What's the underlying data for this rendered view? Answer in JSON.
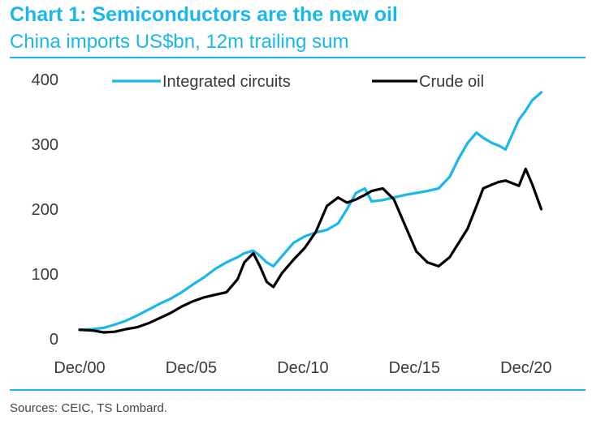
{
  "title": "Chart 1: Semiconductors are the new oil",
  "subtitle": "China imports US$bn, 12m trailing sum",
  "source": "Sources: CEIC, TS Lombard.",
  "chart_data": {
    "type": "line",
    "title": "Chart 1: Semiconductors are the new oil",
    "subtitle": "China imports US$bn, 12m trailing sum",
    "xlabel": "",
    "ylabel": "",
    "x_tick_labels": [
      "Dec/00",
      "Dec/05",
      "Dec/10",
      "Dec/15",
      "Dec/20"
    ],
    "x_tick_values": [
      2000.92,
      2005.92,
      2010.92,
      2015.92,
      2020.92
    ],
    "y_ticks": [
      0,
      100,
      200,
      300,
      400
    ],
    "ylim": [
      0,
      400
    ],
    "xlim": [
      2000.92,
      2023.0
    ],
    "grid": false,
    "legend_position": "top",
    "series": [
      {
        "name": "Integrated circuits",
        "color": "#1ab7ea",
        "x": [
          2000.92,
          2001.5,
          2002.0,
          2002.5,
          2003.0,
          2003.5,
          2004.0,
          2004.5,
          2005.0,
          2005.5,
          2006.0,
          2006.5,
          2007.0,
          2007.5,
          2008.0,
          2008.3,
          2008.7,
          2009.0,
          2009.3,
          2009.6,
          2010.0,
          2010.5,
          2011.0,
          2011.5,
          2012.0,
          2012.5,
          2012.9,
          2013.3,
          2013.7,
          2014.0,
          2014.5,
          2015.0,
          2015.5,
          2016.0,
          2016.5,
          2017.0,
          2017.5,
          2017.9,
          2018.3,
          2018.7,
          2019.0,
          2019.4,
          2019.7,
          2020.0,
          2020.3,
          2020.6,
          2020.9,
          2021.2,
          2021.6
        ],
        "values": [
          14,
          15,
          17,
          22,
          28,
          36,
          45,
          54,
          62,
          72,
          84,
          95,
          108,
          118,
          126,
          132,
          136,
          128,
          118,
          112,
          128,
          148,
          158,
          164,
          168,
          178,
          200,
          225,
          232,
          212,
          214,
          218,
          222,
          225,
          228,
          232,
          250,
          278,
          302,
          318,
          310,
          302,
          298,
          292,
          315,
          338,
          352,
          368,
          380
        ]
      },
      {
        "name": "Crude oil",
        "color": "#000000",
        "x": [
          2000.92,
          2001.5,
          2002.0,
          2002.5,
          2003.0,
          2003.5,
          2004.0,
          2004.5,
          2005.0,
          2005.5,
          2006.0,
          2006.5,
          2007.0,
          2007.5,
          2008.0,
          2008.3,
          2008.7,
          2009.0,
          2009.3,
          2009.6,
          2010.0,
          2010.5,
          2011.0,
          2011.5,
          2012.0,
          2012.5,
          2012.9,
          2013.3,
          2013.7,
          2014.0,
          2014.5,
          2015.0,
          2015.5,
          2016.0,
          2016.5,
          2017.0,
          2017.5,
          2017.9,
          2018.3,
          2018.7,
          2019.0,
          2019.4,
          2019.7,
          2020.0,
          2020.3,
          2020.6,
          2020.9,
          2021.2,
          2021.6
        ],
        "values": [
          14,
          13,
          10,
          11,
          15,
          18,
          24,
          32,
          40,
          50,
          58,
          64,
          68,
          72,
          92,
          118,
          132,
          112,
          88,
          80,
          102,
          122,
          140,
          165,
          205,
          218,
          210,
          215,
          222,
          228,
          232,
          215,
          175,
          135,
          118,
          112,
          126,
          148,
          170,
          205,
          232,
          238,
          242,
          244,
          240,
          236,
          262,
          238,
          200
        ]
      }
    ]
  }
}
